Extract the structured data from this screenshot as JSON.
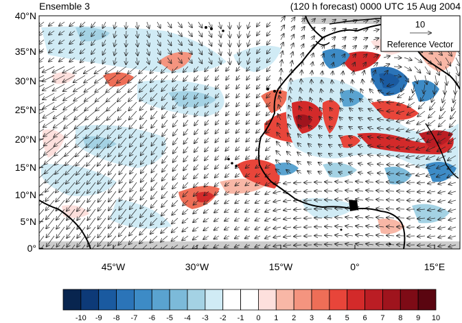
{
  "header": {
    "left_title": "Ensemble 3",
    "right_title": "(120 h forecast) 0000 UTC 15 Aug 2004"
  },
  "map": {
    "lat_labels": [
      "40°N",
      "35°N",
      "30°N",
      "25°N",
      "20°N",
      "15°N",
      "10°N",
      "5°N",
      "0°"
    ],
    "lon_labels": [
      "45°W",
      "30°W",
      "15°W",
      "0°",
      "15°E"
    ],
    "reference_vector": {
      "magnitude_label": "10",
      "label": "Reference Vector"
    }
  },
  "colorbar": {
    "tick_labels": [
      "-10",
      "-9",
      "-8",
      "-7",
      "-6",
      "-5",
      "-4",
      "-3",
      "-2",
      "-1",
      "0",
      "1",
      "2",
      "3",
      "4",
      "5",
      "6",
      "7",
      "8",
      "9",
      "10"
    ],
    "colors": [
      "#08254f",
      "#0d3a78",
      "#1a5aa0",
      "#2b74b8",
      "#3d8bc6",
      "#5aa3d0",
      "#7cbad9",
      "#a4d2e4",
      "#d0ebf5",
      "#ffffff",
      "#ffffff",
      "#fde0dd",
      "#f8b7a6",
      "#f4947f",
      "#ee6e57",
      "#e8453a",
      "#d32a2a",
      "#bb1d24",
      "#9f141d",
      "#7e0b16",
      "#5a0510"
    ]
  }
}
